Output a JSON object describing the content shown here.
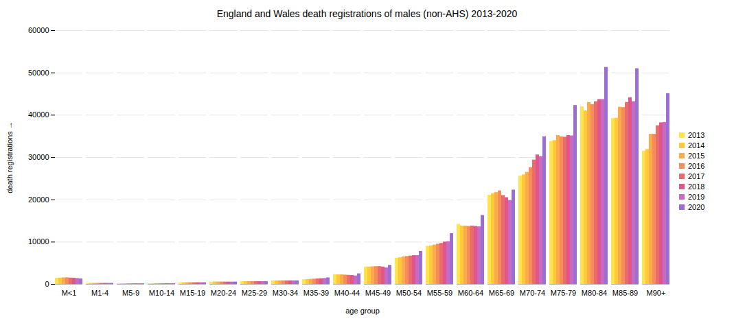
{
  "chart_data": {
    "type": "bar",
    "title": "England and Wales death registrations of males (non-AHS) 2013-2020",
    "x_label": "age group",
    "y_label": "death registrations",
    "categories": [
      "M<1",
      "M1-4",
      "M5-9",
      "M10-14",
      "M15-19",
      "M20-24",
      "M25-29",
      "M30-34",
      "M35-39",
      "M40-44",
      "M45-49",
      "M50-54",
      "M55-59",
      "M60-64",
      "M65-69",
      "M70-74",
      "M75-79",
      "M80-84",
      "M85-89",
      "M90+"
    ],
    "series": [
      {
        "name": "2013",
        "color": "#ffe44f",
        "values": [
          1500,
          250,
          150,
          180,
          400,
          550,
          650,
          850,
          1100,
          2300,
          4100,
          6200,
          9000,
          14200,
          21100,
          25600,
          33800,
          42000,
          39200,
          31500
        ]
      },
      {
        "name": "2014",
        "color": "#ffc93a",
        "values": [
          1500,
          250,
          150,
          180,
          400,
          550,
          650,
          850,
          1150,
          2250,
          4100,
          6300,
          9100,
          13800,
          21400,
          25900,
          34000,
          41000,
          39300,
          31900
        ]
      },
      {
        "name": "2015",
        "color": "#fbab4b",
        "values": [
          1550,
          250,
          150,
          180,
          400,
          550,
          650,
          850,
          1200,
          2250,
          4150,
          6500,
          9300,
          13800,
          21700,
          26500,
          35200,
          43000,
          41900,
          35500
        ]
      },
      {
        "name": "2016",
        "color": "#f68c5a",
        "values": [
          1550,
          250,
          150,
          180,
          400,
          550,
          650,
          850,
          1250,
          2200,
          4200,
          6600,
          9500,
          13700,
          22100,
          27600,
          34900,
          42500,
          41800,
          35500
        ]
      },
      {
        "name": "2017",
        "color": "#ea6b6b",
        "values": [
          1500,
          250,
          150,
          180,
          400,
          550,
          650,
          850,
          1300,
          2150,
          4200,
          6700,
          9700,
          13800,
          21000,
          29400,
          34800,
          43200,
          43000,
          37500
        ]
      },
      {
        "name": "2018",
        "color": "#e0568a",
        "values": [
          1450,
          250,
          150,
          180,
          400,
          550,
          650,
          850,
          1350,
          2100,
          4100,
          6800,
          10000,
          13700,
          20500,
          30600,
          35200,
          43700,
          44100,
          38200
        ]
      },
      {
        "name": "2019",
        "color": "#c46bc6",
        "values": [
          1400,
          250,
          150,
          180,
          400,
          550,
          650,
          850,
          1400,
          2000,
          3900,
          6800,
          10100,
          13600,
          19800,
          30200,
          35100,
          43700,
          43200,
          38300
        ]
      },
      {
        "name": "2020",
        "color": "#9b6fd1",
        "values": [
          1300,
          250,
          150,
          180,
          400,
          550,
          650,
          850,
          1550,
          2500,
          4500,
          7800,
          12000,
          16300,
          22300,
          34900,
          42300,
          51300,
          51000,
          45100
        ]
      }
    ],
    "ylim": [
      0,
      60000
    ],
    "yticks": [
      0,
      10000,
      20000,
      30000,
      40000,
      50000,
      60000
    ],
    "grid": true,
    "legend": "right"
  }
}
